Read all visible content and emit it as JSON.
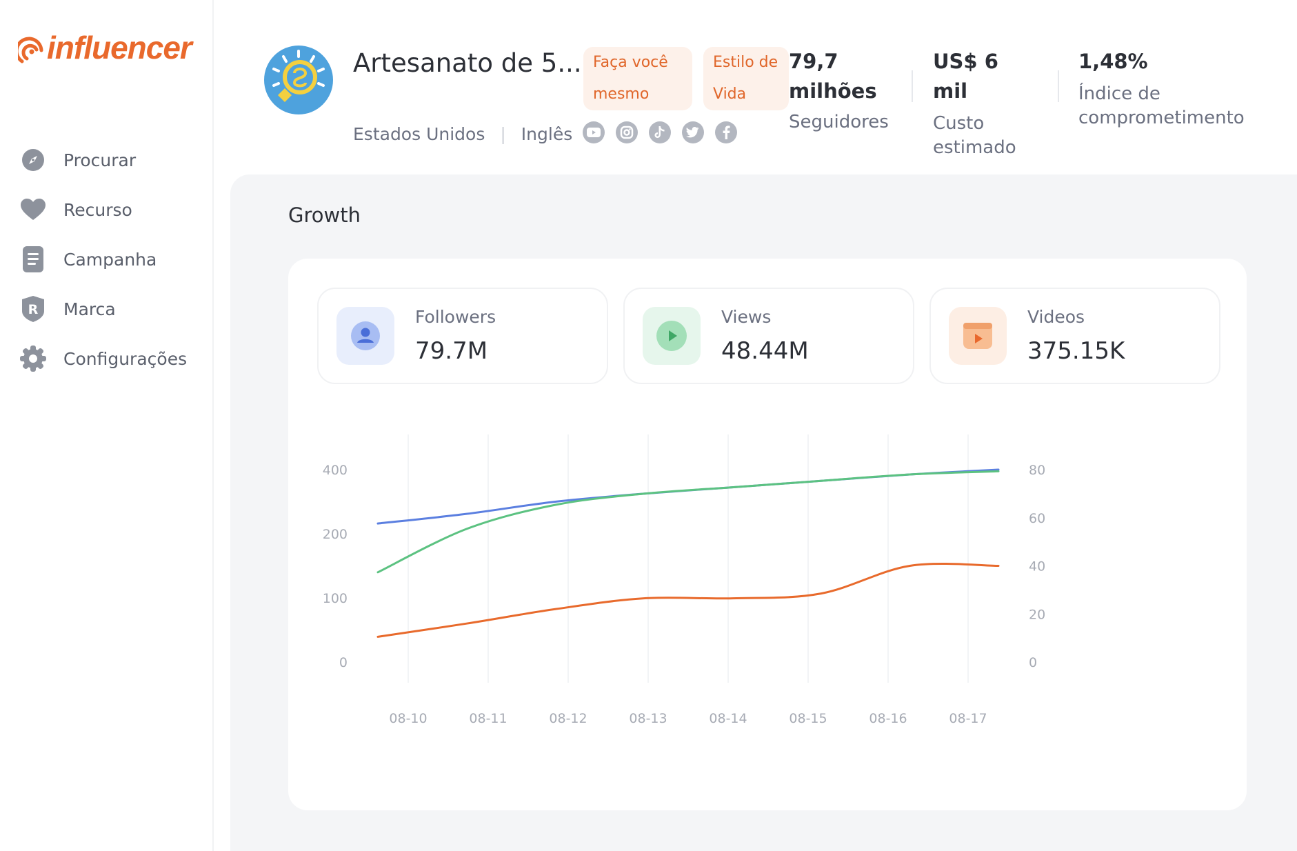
{
  "app": {
    "logo_text": "influencer",
    "brand_color": "#e9692c"
  },
  "sidebar": {
    "items": [
      {
        "label": "Procurar",
        "icon": "compass-icon"
      },
      {
        "label": "Recurso",
        "icon": "heart-icon"
      },
      {
        "label": "Campanha",
        "icon": "document-icon"
      },
      {
        "label": "Marca",
        "icon": "brand-shield-icon"
      },
      {
        "label": "Configurações",
        "icon": "gear-icon"
      }
    ]
  },
  "profile": {
    "name": "Artesanato de 5...",
    "country": "Estados Unidos",
    "language": "Inglês",
    "tags": [
      "Faça você mesmo",
      "Estilo de Vida"
    ],
    "socials": [
      "youtube-icon",
      "instagram-icon",
      "tiktok-icon",
      "twitter-icon",
      "facebook-icon"
    ],
    "stats": [
      {
        "value": "79,7 milhões",
        "label": "Seguidores"
      },
      {
        "value": "US$ 6 mil",
        "label": "Custo estimado"
      },
      {
        "value": "1,48%",
        "label": "Índice de comprometimento"
      }
    ]
  },
  "growth": {
    "title": "Growth",
    "metrics": [
      {
        "label": "Followers",
        "value": "79.7M",
        "icon": "user-icon",
        "color": "#5b7fe0",
        "bg": "#e8eefc"
      },
      {
        "label": "Views",
        "value": "48.44M",
        "icon": "play-icon",
        "color": "#5cc281",
        "bg": "#e6f6ec"
      },
      {
        "label": "Videos",
        "value": "375.15K",
        "icon": "video-icon",
        "color": "#f0884e",
        "bg": "#fdeee4"
      }
    ]
  },
  "chart_data": {
    "type": "line",
    "categories": [
      "08-10",
      "08-11",
      "08-12",
      "08-13",
      "08-14",
      "08-15",
      "08-16",
      "08-17"
    ],
    "y_left_ticks": [
      0,
      100,
      200,
      400
    ],
    "y_right_ticks": [
      0,
      20,
      40,
      60,
      80
    ],
    "y_right_range": [
      0,
      80
    ],
    "series": [
      {
        "axis": "left",
        "color": "#5b7fe0",
        "values": [
          232,
          262,
          300,
          325,
          345,
          365,
          385,
          400
        ]
      },
      {
        "axis": "left",
        "color": "#5cc281",
        "values": [
          140,
          215,
          290,
          325,
          345,
          365,
          385,
          395
        ]
      },
      {
        "axis": "right",
        "color": "#e86a2c",
        "values": [
          10.5,
          16,
          22,
          26.5,
          26.5,
          28.5,
          40,
          40
        ]
      }
    ]
  }
}
